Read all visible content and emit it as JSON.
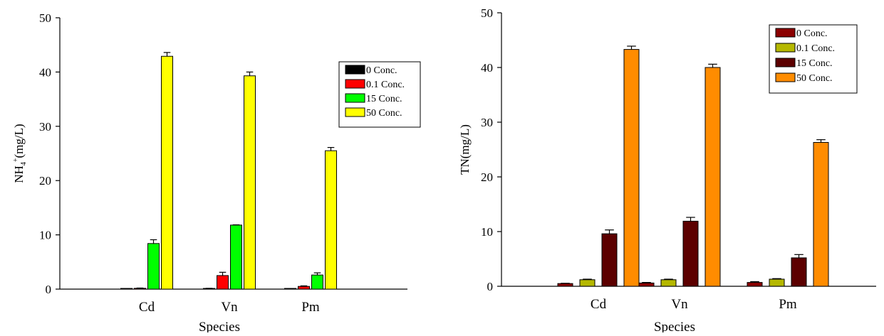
{
  "chart_data": [
    {
      "type": "bar",
      "title": "",
      "xlabel": "Species",
      "ylabel_main": "NH",
      "ylabel_sub": "4",
      "ylabel_sup": "+",
      "ylabel_rest": "(mg/L)",
      "ylim": [
        0,
        50
      ],
      "yticks": [
        0,
        10,
        20,
        30,
        40,
        50
      ],
      "categories": [
        "Cd",
        "Vn",
        "Pm"
      ],
      "legend_position": "right",
      "series": [
        {
          "name": "0 Conc.",
          "color": "#000000",
          "values": [
            0.05,
            0.1,
            0.05
          ],
          "errors": [
            0.05,
            0.05,
            0.05
          ]
        },
        {
          "name": "0.1 Conc.",
          "color": "#ff0000",
          "values": [
            0.15,
            2.5,
            0.5
          ],
          "errors": [
            0.05,
            0.6,
            0.1
          ]
        },
        {
          "name": "15 Conc.",
          "color": "#00ff00",
          "values": [
            8.4,
            11.8,
            2.6
          ],
          "errors": [
            0.7,
            0.05,
            0.4
          ]
        },
        {
          "name": "50 Conc.",
          "color": "#ffff00",
          "values": [
            42.9,
            39.3,
            25.5
          ],
          "errors": [
            0.7,
            0.7,
            0.6
          ]
        }
      ]
    },
    {
      "type": "bar",
      "title": "",
      "xlabel": "Species",
      "ylabel": "TN(mg/L)",
      "ylim": [
        0,
        50
      ],
      "yticks": [
        0,
        10,
        20,
        30,
        40,
        50
      ],
      "categories": [
        "Cd",
        "Vn",
        "Pm"
      ],
      "legend_position": "top-right",
      "series": [
        {
          "name": "0 Conc.",
          "color": "#8b0000",
          "values": [
            0.5,
            0.6,
            0.7
          ],
          "errors": [
            0.05,
            0.1,
            0.15
          ]
        },
        {
          "name": "0.1 Conc.",
          "color": "#b5b800",
          "values": [
            1.2,
            1.2,
            1.3
          ],
          "errors": [
            0.1,
            0.1,
            0.1
          ]
        },
        {
          "name": "15 Conc.",
          "color": "#5c0000",
          "values": [
            9.6,
            11.9,
            5.2
          ],
          "errors": [
            0.7,
            0.7,
            0.6
          ]
        },
        {
          "name": "50 Conc.",
          "color": "#ff8c00",
          "values": [
            43.3,
            40.0,
            26.3
          ],
          "errors": [
            0.6,
            0.6,
            0.5
          ]
        }
      ]
    }
  ]
}
